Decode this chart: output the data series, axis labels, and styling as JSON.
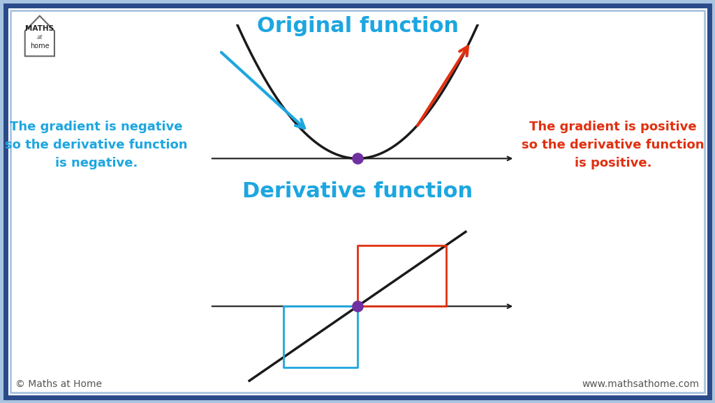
{
  "title_original": "Original function",
  "title_derivative": "Derivative function",
  "bg_color": "#ffffff",
  "border_outer_color": "#a8c4e0",
  "border_inner_color": "#2a4a8a",
  "text_negative_color": "#1da6e0",
  "text_positive_color": "#e03010",
  "text_negative": "The gradient is negative\nso the derivative function\nis negative.",
  "text_positive": "The gradient is positive\nso the derivative function\nis positive.",
  "title_color": "#1da6e0",
  "parabola_color": "#1a1a1a",
  "tangent_left_color": "#1da6e0",
  "tangent_right_color": "#e03010",
  "dot_color": "#7030a0",
  "axis_color": "#1a1a1a",
  "deriv_line_color": "#1a1a1a",
  "deriv_box_left_color": "#1da6e0",
  "deriv_box_right_color": "#e03010",
  "footer_left": "© Maths at Home",
  "footer_right": "www.mathsathome.com",
  "footer_color": "#555555"
}
